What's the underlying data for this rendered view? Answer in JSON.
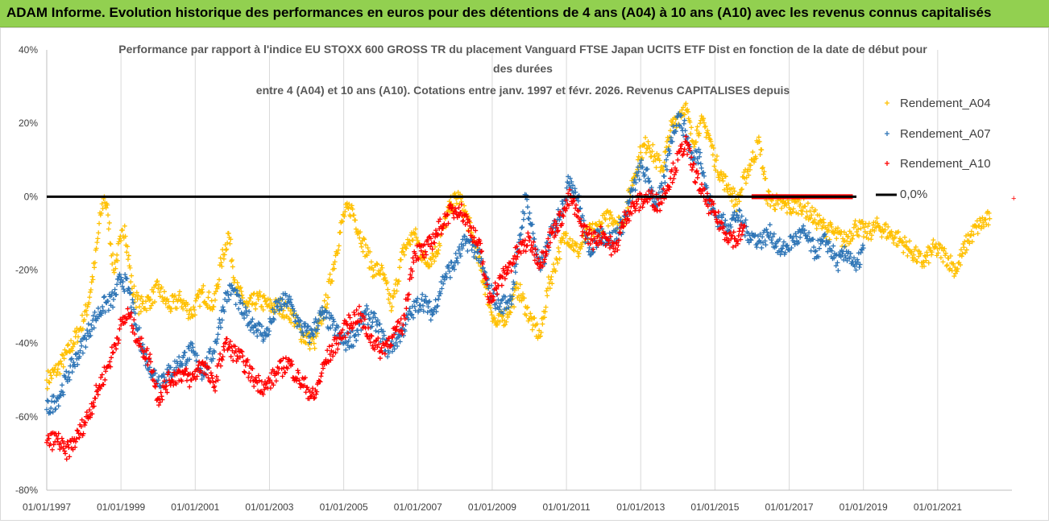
{
  "banner": {
    "title": "ADAM Informe. Evolution historique des performances en euros pour des détentions de 4 ans (A04) à 10 ans (A10) avec les revenus connus capitalisés"
  },
  "chart_data": {
    "type": "scatter",
    "title_lines": [
      "Performance par rapport à l'indice EU STOXX 600 GROSS TR  du placement Vanguard FTSE Japan UCITS ETF Dist en fonction de la date de début pour",
      "des durées",
      "entre 4 (A04) et 10 ans (A10). Cotations entre janv. 1997 et févr. 2026. Revenus CAPITALISES depuis"
    ],
    "xlabel": "",
    "ylabel": "",
    "x_range": [
      1997.0,
      2023.0
    ],
    "ylim": [
      -80,
      40
    ],
    "y_ticks": [
      40,
      20,
      0,
      -20,
      -40,
      -60,
      -80
    ],
    "y_tick_labels": [
      "40%",
      "20%",
      "0%",
      "-20%",
      "-40%",
      "-60%",
      "-80%"
    ],
    "x_ticks": [
      1997,
      1999,
      2001,
      2003,
      2005,
      2007,
      2009,
      2011,
      2013,
      2015,
      2017,
      2019,
      2021
    ],
    "x_tick_labels": [
      "01/01/1997",
      "01/01/1999",
      "01/01/2001",
      "01/01/2003",
      "01/01/2005",
      "01/01/2007",
      "01/01/2009",
      "01/01/2011",
      "01/01/2013",
      "01/01/2015",
      "01/01/2017",
      "01/01/2019",
      "01/01/2021"
    ],
    "grid": "vertical",
    "legend_position": "right",
    "reference_line": {
      "name": "0,0%",
      "value": 0,
      "color": "#000000"
    },
    "series": [
      {
        "name": "Rendement_A04",
        "color": "#ffc000",
        "points": [
          [
            1997.0,
            -50
          ],
          [
            1997.3,
            -47
          ],
          [
            1997.6,
            -42
          ],
          [
            1997.9,
            -36
          ],
          [
            1998.1,
            -30
          ],
          [
            1998.3,
            -18
          ],
          [
            1998.45,
            -5
          ],
          [
            1998.55,
            0
          ],
          [
            1998.65,
            -5
          ],
          [
            1998.8,
            -20
          ],
          [
            1999.0,
            -12
          ],
          [
            1999.1,
            -8
          ],
          [
            1999.3,
            -25
          ],
          [
            1999.5,
            -30
          ],
          [
            1999.8,
            -28
          ],
          [
            2000.0,
            -25
          ],
          [
            2000.3,
            -30
          ],
          [
            2000.6,
            -28
          ],
          [
            2000.9,
            -32
          ],
          [
            2001.2,
            -26
          ],
          [
            2001.5,
            -30
          ],
          [
            2001.7,
            -18
          ],
          [
            2001.9,
            -10
          ],
          [
            2002.1,
            -25
          ],
          [
            2002.4,
            -30
          ],
          [
            2002.7,
            -28
          ],
          [
            2003.0,
            -30
          ],
          [
            2003.3,
            -30
          ],
          [
            2003.6,
            -32
          ],
          [
            2003.9,
            -38
          ],
          [
            2004.2,
            -40
          ],
          [
            2004.5,
            -30
          ],
          [
            2004.8,
            -15
          ],
          [
            2005.0,
            -5
          ],
          [
            2005.2,
            -3
          ],
          [
            2005.5,
            -12
          ],
          [
            2005.8,
            -20
          ],
          [
            2006.0,
            -20
          ],
          [
            2006.3,
            -30
          ],
          [
            2006.6,
            -15
          ],
          [
            2006.9,
            -10
          ],
          [
            2007.2,
            -18
          ],
          [
            2007.5,
            -15
          ],
          [
            2007.7,
            -8
          ],
          [
            2007.9,
            -2
          ],
          [
            2008.1,
            0
          ],
          [
            2008.3,
            -5
          ],
          [
            2008.5,
            -12
          ],
          [
            2008.7,
            -20
          ],
          [
            2008.9,
            -28
          ],
          [
            2009.1,
            -35
          ],
          [
            2009.4,
            -32
          ],
          [
            2009.7,
            -25
          ],
          [
            2009.9,
            -30
          ],
          [
            2010.1,
            -35
          ],
          [
            2010.3,
            -38
          ],
          [
            2010.5,
            -25
          ],
          [
            2010.8,
            -15
          ],
          [
            2011.0,
            -10
          ],
          [
            2011.3,
            -15
          ],
          [
            2011.6,
            -10
          ],
          [
            2011.9,
            -8
          ],
          [
            2012.2,
            -5
          ],
          [
            2012.5,
            -8
          ],
          [
            2012.8,
            5
          ],
          [
            2013.0,
            12
          ],
          [
            2013.2,
            15
          ],
          [
            2013.4,
            10
          ],
          [
            2013.6,
            8
          ],
          [
            2013.8,
            18
          ],
          [
            2014.0,
            22
          ],
          [
            2014.2,
            25
          ],
          [
            2014.4,
            15
          ],
          [
            2014.6,
            20
          ],
          [
            2014.8,
            18
          ],
          [
            2015.0,
            10
          ],
          [
            2015.2,
            5
          ],
          [
            2015.4,
            2
          ],
          [
            2015.6,
            -2
          ],
          [
            2015.8,
            5
          ],
          [
            2016.0,
            10
          ],
          [
            2016.2,
            15
          ],
          [
            2016.4,
            0
          ],
          [
            2016.7,
            -2
          ],
          [
            2017.0,
            -3
          ],
          [
            2017.3,
            -2
          ],
          [
            2017.6,
            -5
          ],
          [
            2017.9,
            -8
          ],
          [
            2018.2,
            -10
          ],
          [
            2018.5,
            -12
          ],
          [
            2018.8,
            -8
          ],
          [
            2019.1,
            -10
          ],
          [
            2019.4,
            -8
          ],
          [
            2019.7,
            -10
          ],
          [
            2020.0,
            -12
          ],
          [
            2020.3,
            -15
          ],
          [
            2020.6,
            -18
          ],
          [
            2020.9,
            -14
          ],
          [
            2021.2,
            -16
          ],
          [
            2021.5,
            -20
          ],
          [
            2021.8,
            -12
          ],
          [
            2022.1,
            -8
          ],
          [
            2022.4,
            -6
          ]
        ]
      },
      {
        "name": "Rendement_A07",
        "color": "#2e75b6",
        "points": [
          [
            1997.0,
            -58
          ],
          [
            1997.3,
            -55
          ],
          [
            1997.6,
            -48
          ],
          [
            1997.9,
            -42
          ],
          [
            1998.2,
            -35
          ],
          [
            1998.5,
            -30
          ],
          [
            1998.8,
            -28
          ],
          [
            1999.0,
            -22
          ],
          [
            1999.2,
            -25
          ],
          [
            1999.4,
            -35
          ],
          [
            1999.7,
            -45
          ],
          [
            2000.0,
            -50
          ],
          [
            2000.3,
            -48
          ],
          [
            2000.6,
            -45
          ],
          [
            2000.9,
            -42
          ],
          [
            2001.2,
            -48
          ],
          [
            2001.5,
            -42
          ],
          [
            2001.8,
            -28
          ],
          [
            2002.0,
            -25
          ],
          [
            2002.3,
            -32
          ],
          [
            2002.6,
            -35
          ],
          [
            2002.9,
            -38
          ],
          [
            2003.2,
            -30
          ],
          [
            2003.5,
            -28
          ],
          [
            2003.8,
            -35
          ],
          [
            2004.1,
            -38
          ],
          [
            2004.4,
            -32
          ],
          [
            2004.7,
            -35
          ],
          [
            2005.0,
            -40
          ],
          [
            2005.3,
            -38
          ],
          [
            2005.6,
            -32
          ],
          [
            2005.9,
            -35
          ],
          [
            2006.2,
            -42
          ],
          [
            2006.5,
            -38
          ],
          [
            2006.8,
            -32
          ],
          [
            2007.1,
            -28
          ],
          [
            2007.4,
            -32
          ],
          [
            2007.7,
            -22
          ],
          [
            2008.0,
            -18
          ],
          [
            2008.3,
            -12
          ],
          [
            2008.6,
            -15
          ],
          [
            2008.9,
            -25
          ],
          [
            2009.2,
            -30
          ],
          [
            2009.5,
            -28
          ],
          [
            2009.7,
            -15
          ],
          [
            2009.9,
            0
          ],
          [
            2010.1,
            -10
          ],
          [
            2010.3,
            -20
          ],
          [
            2010.6,
            -10
          ],
          [
            2010.9,
            -2
          ],
          [
            2011.1,
            5
          ],
          [
            2011.3,
            0
          ],
          [
            2011.6,
            -15
          ],
          [
            2011.9,
            -10
          ],
          [
            2012.2,
            -12
          ],
          [
            2012.5,
            -8
          ],
          [
            2012.8,
            2
          ],
          [
            2013.0,
            8
          ],
          [
            2013.2,
            5
          ],
          [
            2013.4,
            -2
          ],
          [
            2013.6,
            2
          ],
          [
            2013.8,
            15
          ],
          [
            2014.0,
            22
          ],
          [
            2014.2,
            18
          ],
          [
            2014.4,
            10
          ],
          [
            2014.6,
            12
          ],
          [
            2014.8,
            0
          ],
          [
            2015.0,
            -5
          ],
          [
            2015.3,
            -8
          ],
          [
            2015.6,
            -5
          ],
          [
            2015.9,
            -10
          ],
          [
            2016.2,
            -12
          ],
          [
            2016.5,
            -10
          ],
          [
            2016.8,
            -15
          ],
          [
            2017.1,
            -12
          ],
          [
            2017.4,
            -10
          ],
          [
            2017.7,
            -15
          ],
          [
            2018.0,
            -12
          ],
          [
            2018.3,
            -18
          ],
          [
            2018.6,
            -15
          ],
          [
            2018.8,
            -20
          ],
          [
            2019.0,
            -14
          ]
        ]
      },
      {
        "name": "Rendement_A10",
        "color": "#ff0000",
        "points": [
          [
            1997.0,
            -67
          ],
          [
            1997.3,
            -66
          ],
          [
            1997.5,
            -70
          ],
          [
            1997.8,
            -66
          ],
          [
            1998.1,
            -60
          ],
          [
            1998.4,
            -52
          ],
          [
            1998.7,
            -45
          ],
          [
            1999.0,
            -35
          ],
          [
            1999.2,
            -32
          ],
          [
            1999.5,
            -40
          ],
          [
            1999.8,
            -45
          ],
          [
            2000.0,
            -55
          ],
          [
            2000.3,
            -50
          ],
          [
            2000.6,
            -48
          ],
          [
            2000.9,
            -50
          ],
          [
            2001.2,
            -45
          ],
          [
            2001.5,
            -52
          ],
          [
            2001.8,
            -40
          ],
          [
            2002.0,
            -42
          ],
          [
            2002.3,
            -45
          ],
          [
            2002.6,
            -50
          ],
          [
            2002.9,
            -52
          ],
          [
            2003.2,
            -48
          ],
          [
            2003.5,
            -45
          ],
          [
            2003.8,
            -50
          ],
          [
            2004.0,
            -52
          ],
          [
            2004.2,
            -55
          ],
          [
            2004.5,
            -45
          ],
          [
            2004.8,
            -40
          ],
          [
            2005.1,
            -35
          ],
          [
            2005.4,
            -32
          ],
          [
            2005.7,
            -38
          ],
          [
            2006.0,
            -42
          ],
          [
            2006.3,
            -38
          ],
          [
            2006.6,
            -35
          ],
          [
            2006.9,
            -15
          ],
          [
            2007.2,
            -15
          ],
          [
            2007.5,
            -10
          ],
          [
            2007.8,
            -5
          ],
          [
            2008.1,
            -3
          ],
          [
            2008.4,
            -8
          ],
          [
            2008.7,
            -15
          ],
          [
            2008.9,
            -28
          ],
          [
            2009.1,
            -25
          ],
          [
            2009.4,
            -20
          ],
          [
            2009.7,
            -15
          ],
          [
            2010.0,
            -12
          ],
          [
            2010.3,
            -18
          ],
          [
            2010.6,
            -10
          ],
          [
            2010.9,
            -5
          ],
          [
            2011.1,
            0
          ],
          [
            2011.4,
            -8
          ],
          [
            2011.7,
            -12
          ],
          [
            2012.0,
            -10
          ],
          [
            2012.3,
            -15
          ],
          [
            2012.6,
            -5
          ],
          [
            2012.9,
            -2
          ],
          [
            2013.2,
            0
          ],
          [
            2013.5,
            -2
          ],
          [
            2013.8,
            5
          ],
          [
            2014.0,
            10
          ],
          [
            2014.2,
            15
          ],
          [
            2014.4,
            8
          ],
          [
            2014.7,
            0
          ],
          [
            2015.0,
            -5
          ],
          [
            2015.3,
            -10
          ],
          [
            2015.6,
            -12
          ],
          [
            2015.8,
            -8
          ]
        ]
      },
      {
        "name": "Rendement_A10",
        "color": "#ff0000",
        "points": [
          [
            2016.0,
            0
          ],
          [
            2016.4,
            0
          ],
          [
            2016.8,
            0
          ],
          [
            2017.2,
            0
          ],
          [
            2017.6,
            0
          ],
          [
            2018.0,
            0
          ],
          [
            2018.4,
            0
          ],
          [
            2018.7,
            0
          ]
        ]
      }
    ]
  },
  "legend": [
    {
      "label": "Rendement_A04",
      "color": "#ffc000",
      "kind": "marker"
    },
    {
      "label": "Rendement_A07",
      "color": "#2e75b6",
      "kind": "marker"
    },
    {
      "label": "Rendement_A10",
      "color": "#ff0000",
      "kind": "marker"
    },
    {
      "label": "0,0%",
      "color": "#000000",
      "kind": "line"
    }
  ]
}
